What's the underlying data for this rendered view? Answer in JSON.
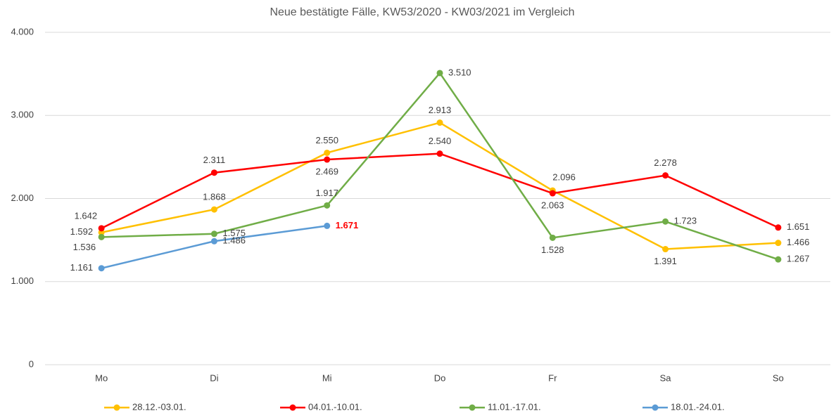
{
  "chart_data": {
    "type": "line",
    "title": "Neue bestätigte Fälle, KW53/2020 - KW03/2021 im Vergleich",
    "categories": [
      "Mo",
      "Di",
      "Mi",
      "Do",
      "Fr",
      "Sa",
      "So"
    ],
    "series": [
      {
        "name": "28.12.-03.01.",
        "color": "#ffc000",
        "values": [
          1592,
          1868,
          2550,
          2913,
          2096,
          1391,
          1466
        ],
        "value_labels": [
          "1.592",
          "1.868",
          "2.550",
          "2.913",
          "2.096",
          "1.391",
          "1.466"
        ]
      },
      {
        "name": "04.01.-10.01.",
        "color": "#ff0000",
        "values": [
          1642,
          2311,
          2469,
          2540,
          2063,
          2278,
          1651
        ],
        "value_labels": [
          "1.642",
          "2.311",
          "2.469",
          "2.540",
          "2.063",
          "2.278",
          "1.651"
        ]
      },
      {
        "name": "11.01.-17.01.",
        "color": "#70ad47",
        "values": [
          1536,
          1575,
          1917,
          3510,
          1528,
          1723,
          1267
        ],
        "value_labels": [
          "1.536",
          "1.575",
          "1.917",
          "3.510",
          "1.528",
          "1.723",
          "1.267"
        ]
      },
      {
        "name": "18.01.-24.01.",
        "color": "#5b9bd5",
        "values": [
          1161,
          1486,
          1671,
          null,
          null,
          null,
          null
        ],
        "value_labels": [
          "1.161",
          "1.486",
          "1.671",
          null,
          null,
          null,
          null
        ]
      }
    ],
    "emphasis": {
      "series": 3,
      "index": 2,
      "color": "#ff0000"
    },
    "ylim": [
      0,
      4000
    ],
    "yticks": [
      0,
      {
        "value": 1000,
        "label": "1.000"
      },
      {
        "value": 2000,
        "label": "2.000"
      },
      {
        "value": 3000,
        "label": "3.000"
      },
      {
        "value": 4000,
        "label": "4.000"
      }
    ],
    "grid": true,
    "legend": "bottom"
  }
}
